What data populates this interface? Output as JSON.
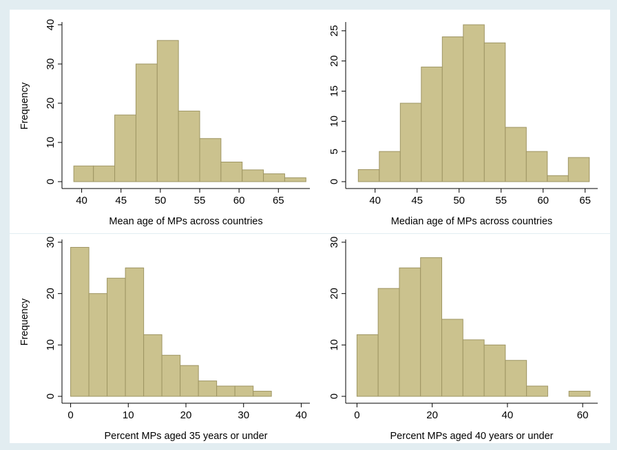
{
  "colors": {
    "background": "#e2edf1",
    "panel": "#ffffff",
    "bar_fill": "#cbc28e",
    "bar_stroke": "#9e9563",
    "axis": "#000000"
  },
  "chart_data": [
    {
      "type": "bar",
      "xlabel": "Mean age of MPs across countries",
      "ylabel": "Frequency",
      "xlim": [
        37.5,
        69
      ],
      "ylim": [
        0,
        40
      ],
      "xticks": [
        40,
        45,
        50,
        55,
        60,
        65
      ],
      "yticks": [
        0,
        10,
        20,
        30,
        40
      ],
      "bins": [
        {
          "x0": 39,
          "x1": 41.5,
          "value": 4
        },
        {
          "x0": 41.5,
          "x1": 44.2,
          "value": 4
        },
        {
          "x0": 44.2,
          "x1": 46.9,
          "value": 17
        },
        {
          "x0": 46.9,
          "x1": 49.6,
          "value": 30
        },
        {
          "x0": 49.6,
          "x1": 52.3,
          "value": 36
        },
        {
          "x0": 52.3,
          "x1": 55.0,
          "value": 18
        },
        {
          "x0": 55.0,
          "x1": 57.7,
          "value": 11
        },
        {
          "x0": 57.7,
          "x1": 60.4,
          "value": 5
        },
        {
          "x0": 60.4,
          "x1": 63.1,
          "value": 3
        },
        {
          "x0": 63.1,
          "x1": 65.8,
          "value": 2
        },
        {
          "x0": 65.8,
          "x1": 68.5,
          "value": 1
        }
      ],
      "grid": false
    },
    {
      "type": "bar",
      "xlabel": "Median age of MPs across countries",
      "ylabel": "",
      "xlim": [
        36.5,
        66.5
      ],
      "ylim": [
        0,
        26
      ],
      "xticks": [
        40,
        45,
        50,
        55,
        60,
        65
      ],
      "yticks": [
        0,
        5,
        10,
        15,
        20,
        25
      ],
      "bins": [
        {
          "x0": 38.0,
          "x1": 40.5,
          "value": 2
        },
        {
          "x0": 40.5,
          "x1": 43.0,
          "value": 5
        },
        {
          "x0": 43.0,
          "x1": 45.5,
          "value": 13
        },
        {
          "x0": 45.5,
          "x1": 48.0,
          "value": 19
        },
        {
          "x0": 48.0,
          "x1": 50.5,
          "value": 24
        },
        {
          "x0": 50.5,
          "x1": 53.0,
          "value": 26
        },
        {
          "x0": 53.0,
          "x1": 55.5,
          "value": 23
        },
        {
          "x0": 55.5,
          "x1": 58.0,
          "value": 9
        },
        {
          "x0": 58.0,
          "x1": 60.5,
          "value": 5
        },
        {
          "x0": 60.5,
          "x1": 63.0,
          "value": 1
        },
        {
          "x0": 63.0,
          "x1": 65.5,
          "value": 4
        }
      ],
      "grid": false
    },
    {
      "type": "bar",
      "xlabel": "Percent MPs aged 35 years or under",
      "ylabel": "Frequency",
      "xlim": [
        -1.5,
        41.5
      ],
      "ylim": [
        0,
        30
      ],
      "xticks": [
        0,
        10,
        20,
        30,
        40
      ],
      "yticks": [
        0,
        10,
        20,
        30
      ],
      "bins": [
        {
          "x0": 0.0,
          "x1": 3.17,
          "value": 29
        },
        {
          "x0": 3.17,
          "x1": 6.33,
          "value": 20
        },
        {
          "x0": 6.33,
          "x1": 9.5,
          "value": 23
        },
        {
          "x0": 9.5,
          "x1": 12.67,
          "value": 25
        },
        {
          "x0": 12.67,
          "x1": 15.83,
          "value": 12
        },
        {
          "x0": 15.83,
          "x1": 19.0,
          "value": 8
        },
        {
          "x0": 19.0,
          "x1": 22.17,
          "value": 6
        },
        {
          "x0": 22.17,
          "x1": 25.33,
          "value": 3
        },
        {
          "x0": 25.33,
          "x1": 28.5,
          "value": 2
        },
        {
          "x0": 28.5,
          "x1": 31.67,
          "value": 2
        },
        {
          "x0": 31.67,
          "x1": 34.83,
          "value": 1
        }
      ],
      "grid": false
    },
    {
      "type": "bar",
      "xlabel": "Percent MPs aged 40 years or under",
      "ylabel": "",
      "xlim": [
        -3,
        64
      ],
      "ylim": [
        0,
        30
      ],
      "xticks": [
        0,
        20,
        40,
        60
      ],
      "yticks": [
        0,
        10,
        20,
        30
      ],
      "bins": [
        {
          "x0": 0.0,
          "x1": 5.63,
          "value": 12
        },
        {
          "x0": 5.63,
          "x1": 11.27,
          "value": 21
        },
        {
          "x0": 11.27,
          "x1": 16.9,
          "value": 25
        },
        {
          "x0": 16.9,
          "x1": 22.54,
          "value": 27
        },
        {
          "x0": 22.54,
          "x1": 28.17,
          "value": 15
        },
        {
          "x0": 28.17,
          "x1": 33.81,
          "value": 11
        },
        {
          "x0": 33.81,
          "x1": 39.44,
          "value": 10
        },
        {
          "x0": 39.44,
          "x1": 45.08,
          "value": 7
        },
        {
          "x0": 45.08,
          "x1": 50.71,
          "value": 2
        },
        {
          "x0": 50.71,
          "x1": 56.35,
          "value": 0
        },
        {
          "x0": 56.35,
          "x1": 61.98,
          "value": 1
        }
      ],
      "grid": false
    }
  ]
}
